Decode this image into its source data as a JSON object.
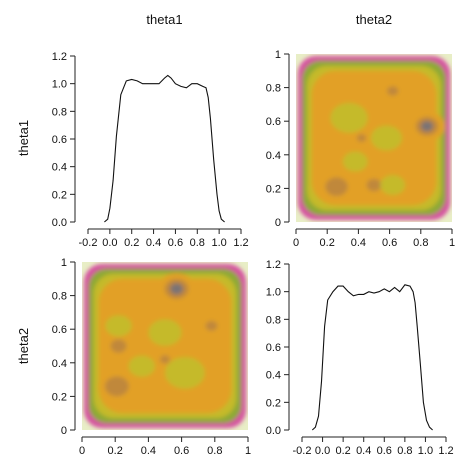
{
  "chart_data": [
    {
      "panel": "theta1-theta1",
      "type": "line",
      "column_header": "theta1",
      "row_header": "theta1",
      "xlim": [
        -0.2,
        1.2
      ],
      "ylim": [
        0.0,
        1.2
      ],
      "xticks": [
        "-0.2",
        "0.0",
        "0.2",
        "0.4",
        "0.6",
        "0.8",
        "1.0",
        "1.2"
      ],
      "yticks": [
        "0.0",
        "0.2",
        "0.4",
        "0.6",
        "0.8",
        "1.0",
        "1.2"
      ],
      "x": [
        -0.05,
        -0.02,
        0.0,
        0.03,
        0.06,
        0.1,
        0.15,
        0.2,
        0.25,
        0.3,
        0.35,
        0.4,
        0.45,
        0.5,
        0.53,
        0.56,
        0.6,
        0.65,
        0.7,
        0.75,
        0.8,
        0.85,
        0.88,
        0.9,
        0.92,
        0.95,
        0.98,
        1.0,
        1.02,
        1.05
      ],
      "y": [
        0.0,
        0.02,
        0.1,
        0.3,
        0.62,
        0.92,
        1.02,
        1.03,
        1.02,
        1.0,
        1.0,
        1.0,
        1.0,
        1.04,
        1.06,
        1.04,
        1.0,
        0.98,
        0.97,
        1.0,
        1.0,
        0.98,
        0.97,
        0.9,
        0.75,
        0.45,
        0.2,
        0.08,
        0.02,
        0.0
      ]
    },
    {
      "panel": "theta1-theta2",
      "type": "heatmap",
      "column_header": "theta2",
      "row_header": "theta1",
      "xlim": [
        0,
        1
      ],
      "ylim": [
        0,
        1
      ],
      "xticks": [
        "0",
        "0.2",
        "0.4",
        "0.6",
        "0.8",
        "1"
      ],
      "yticks": [
        "0",
        "0.2",
        "0.4",
        "0.6",
        "0.8",
        "1"
      ],
      "colors": [
        "#e8eec6",
        "#d64fa0",
        "#8da936",
        "#c5ba2a",
        "#e2a026",
        "#c0883a",
        "#7a7374"
      ],
      "blobs": [
        {
          "x": 0.84,
          "y": 0.57,
          "level": 6,
          "r": 0.06
        },
        {
          "x": 0.26,
          "y": 0.21,
          "level": 5,
          "r": 0.06
        },
        {
          "x": 0.5,
          "y": 0.22,
          "level": 5,
          "r": 0.04
        },
        {
          "x": 0.62,
          "y": 0.78,
          "level": 5,
          "r": 0.03
        },
        {
          "x": 0.42,
          "y": 0.5,
          "level": 5,
          "r": 0.025
        },
        {
          "x": 0.34,
          "y": 0.62,
          "level": 3,
          "r": 0.12
        },
        {
          "x": 0.58,
          "y": 0.5,
          "level": 3,
          "r": 0.1
        },
        {
          "x": 0.38,
          "y": 0.36,
          "level": 3,
          "r": 0.08
        },
        {
          "x": 0.62,
          "y": 0.22,
          "level": 3,
          "r": 0.08
        }
      ]
    },
    {
      "panel": "theta2-theta1",
      "type": "heatmap",
      "column_header": "theta1",
      "row_header": "theta2",
      "xlim": [
        0,
        1
      ],
      "ylim": [
        0,
        1
      ],
      "xticks": [
        "0",
        "0.2",
        "0.4",
        "0.6",
        "0.8",
        "1"
      ],
      "yticks": [
        "0",
        "0.2",
        "0.4",
        "0.6",
        "0.8",
        "1"
      ],
      "colors": [
        "#e8eec6",
        "#d64fa0",
        "#8da936",
        "#c5ba2a",
        "#e2a026",
        "#c0883a",
        "#7a7374"
      ],
      "blobs": [
        {
          "x": 0.57,
          "y": 0.84,
          "level": 6,
          "r": 0.06
        },
        {
          "x": 0.21,
          "y": 0.26,
          "level": 5,
          "r": 0.06
        },
        {
          "x": 0.22,
          "y": 0.5,
          "level": 5,
          "r": 0.04
        },
        {
          "x": 0.78,
          "y": 0.62,
          "level": 5,
          "r": 0.03
        },
        {
          "x": 0.5,
          "y": 0.42,
          "level": 5,
          "r": 0.025
        },
        {
          "x": 0.62,
          "y": 0.34,
          "level": 3,
          "r": 0.12
        },
        {
          "x": 0.5,
          "y": 0.58,
          "level": 3,
          "r": 0.1
        },
        {
          "x": 0.36,
          "y": 0.38,
          "level": 3,
          "r": 0.08
        },
        {
          "x": 0.22,
          "y": 0.62,
          "level": 3,
          "r": 0.08
        }
      ]
    },
    {
      "panel": "theta2-theta2",
      "type": "line",
      "column_header": "theta2",
      "row_header": "theta2",
      "xlim": [
        -0.2,
        1.2
      ],
      "ylim": [
        0.0,
        1.2
      ],
      "xticks": [
        "-0.2",
        "0.0",
        "0.2",
        "0.4",
        "0.6",
        "0.8",
        "1.0",
        "1.2"
      ],
      "yticks": [
        "0.0",
        "0.2",
        "0.4",
        "0.6",
        "0.8",
        "1.0",
        "1.2"
      ],
      "x": [
        -0.1,
        -0.07,
        -0.04,
        -0.01,
        0.02,
        0.05,
        0.1,
        0.15,
        0.2,
        0.25,
        0.3,
        0.35,
        0.4,
        0.45,
        0.5,
        0.55,
        0.6,
        0.65,
        0.7,
        0.75,
        0.8,
        0.85,
        0.88,
        0.9,
        0.92,
        0.95,
        0.98,
        1.01,
        1.04,
        1.07
      ],
      "y": [
        0.0,
        0.02,
        0.1,
        0.35,
        0.75,
        0.94,
        1.0,
        1.04,
        1.04,
        1.0,
        0.97,
        0.98,
        0.98,
        1.0,
        0.99,
        1.0,
        1.02,
        1.0,
        1.03,
        1.0,
        1.05,
        1.04,
        1.0,
        0.92,
        0.75,
        0.48,
        0.2,
        0.07,
        0.02,
        0.0
      ]
    }
  ]
}
